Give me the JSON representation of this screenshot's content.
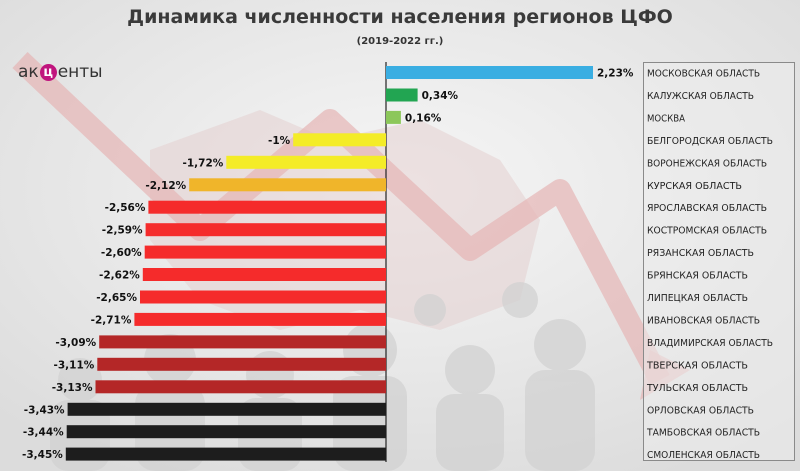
{
  "header": {
    "title": "Динамика численности населения регионов ЦФО",
    "subtitle": "(2019-2022 гг.)"
  },
  "logo": {
    "pre": "ак",
    "mid": "ц",
    "post": "енты"
  },
  "colors": {
    "blue": "#3aaee2",
    "green_dark": "#22a552",
    "green_light": "#8cc75a",
    "yellow": "#f4ec27",
    "orange": "#f0b52a",
    "red": "#f52b2b",
    "dark_red": "#b42727",
    "black": "#1d1d1d"
  },
  "chart_data": {
    "type": "bar",
    "orientation": "horizontal",
    "title": "Динамика численности населения регионов ЦФО",
    "subtitle": "(2019-2022 гг.)",
    "unit": "%",
    "categories": [
      "МОСКОВСКАЯ ОБЛАСТЬ",
      "КАЛУЖСКАЯ ОБЛАСТЬ",
      "МОСКВА",
      "БЕЛГОРОДСКАЯ ОБЛАСТЬ",
      "ВОРОНЕЖСКАЯ ОБЛАСТЬ",
      "КУРСКАЯ ОБЛАСТЬ",
      "ЯРОСЛАВСКАЯ ОБЛАСТЬ",
      "КОСТРОМСКАЯ ОБЛАСТЬ",
      "РЯЗАНСКАЯ ОБЛАСТЬ",
      "БРЯНСКАЯ ОБЛАСТЬ",
      "ЛИПЕЦКАЯ ОБЛАСТЬ",
      "ИВАНОВСКАЯ ОБЛАСТЬ",
      "ВЛАДИМИРСКАЯ ОБЛАСТЬ",
      "ТВЕРСКАЯ ОБЛАСТЬ",
      "ТУЛЬСКАЯ ОБЛАСТЬ",
      "ОРЛОВСКАЯ ОБЛАСТЬ",
      "ТАМБОВСКАЯ ОБЛАСТЬ",
      "СМОЛЕНСКАЯ ОБЛАСТЬ"
    ],
    "values": [
      2.23,
      0.34,
      0.16,
      -1,
      -1.72,
      -2.12,
      -2.56,
      -2.59,
      -2.6,
      -2.62,
      -2.65,
      -2.71,
      -3.09,
      -3.11,
      -3.13,
      -3.43,
      -3.44,
      -3.45
    ],
    "value_labels": [
      "2,23%",
      "0,34%",
      "0,16%",
      "-1%",
      "-1,72%",
      "-2,12%",
      "-2,56%",
      "-2,59%",
      "-2,60%",
      "-2,62%",
      "-2,65%",
      "-2,71%",
      "-3,09%",
      "-3,11%",
      "-3,13%",
      "-3,43%",
      "-3,44%",
      "-3,45%"
    ],
    "bar_colors": [
      "blue",
      "green_dark",
      "green_light",
      "yellow",
      "yellow",
      "orange",
      "red",
      "red",
      "red",
      "red",
      "red",
      "red",
      "dark_red",
      "dark_red",
      "dark_red",
      "black",
      "black",
      "black"
    ],
    "xlim": [
      -3.45,
      2.23
    ],
    "grid": false,
    "legend": "none"
  }
}
